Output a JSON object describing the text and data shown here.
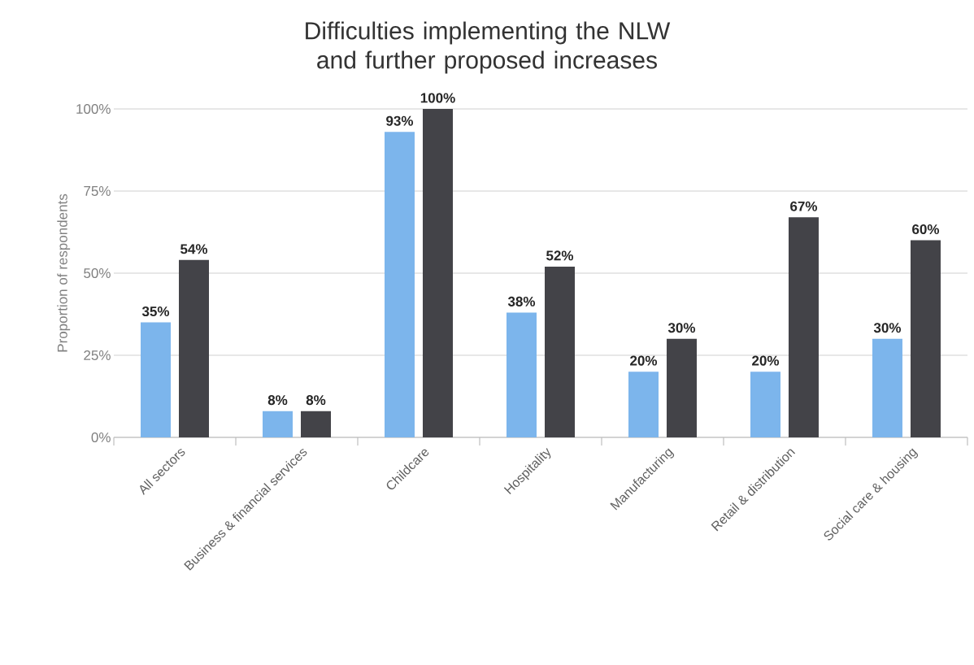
{
  "chart_data": {
    "type": "bar",
    "title": "Difficulties implementing the NLW and further proposed increases",
    "ylabel": "Proportion of respondents",
    "categories": [
      "All sectors",
      "Business & financial services",
      "Childcare",
      "Hospitality",
      "Manufacturing",
      "Retail & distribution",
      "Social care & housing"
    ],
    "series": [
      {
        "color": "#7cb5ec",
        "values": [
          35,
          8,
          93,
          38,
          20,
          20,
          30
        ],
        "value_labels": [
          "35%",
          "8%",
          "93%",
          "38%",
          "20%",
          "20%",
          "30%"
        ]
      },
      {
        "color": "#434348",
        "values": [
          54,
          8,
          100,
          52,
          30,
          67,
          60
        ],
        "value_labels": [
          "54%",
          "8%",
          "100%",
          "52%",
          "30%",
          "67%",
          "60%"
        ]
      }
    ],
    "ylim": [
      0,
      100
    ],
    "yticks": [
      {
        "value": 0,
        "label": "0%"
      },
      {
        "value": 25,
        "label": "25%"
      },
      {
        "value": 50,
        "label": "50%"
      },
      {
        "value": 75,
        "label": "75%"
      },
      {
        "value": 100,
        "label": "100%"
      }
    ],
    "grid": "y"
  }
}
